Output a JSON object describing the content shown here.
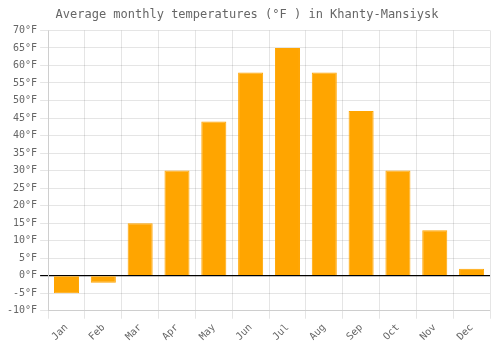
{
  "chart_data": {
    "type": "bar",
    "title": "Average monthly temperatures (°F ) in Khanty-Mansiysk",
    "categories": [
      "Jan",
      "Feb",
      "Mar",
      "Apr",
      "May",
      "Jun",
      "Jul",
      "Aug",
      "Sep",
      "Oct",
      "Nov",
      "Dec"
    ],
    "values": [
      -5,
      -2,
      15,
      30,
      44,
      58,
      65,
      58,
      47,
      30,
      13,
      2
    ],
    "color": "#FFA500",
    "ylim": [
      -10,
      70
    ],
    "yticks": [
      {
        "value": -10,
        "label": "-10°F"
      },
      {
        "value": -5,
        "label": "-5°F"
      },
      {
        "value": 0,
        "label": "0°F"
      },
      {
        "value": 5,
        "label": "5°F"
      },
      {
        "value": 10,
        "label": "10°F"
      },
      {
        "value": 15,
        "label": "15°F"
      },
      {
        "value": 20,
        "label": "20°F"
      },
      {
        "value": 25,
        "label": "25°F"
      },
      {
        "value": 30,
        "label": "30°F"
      },
      {
        "value": 35,
        "label": "35°F"
      },
      {
        "value": 40,
        "label": "40°F"
      },
      {
        "value": 45,
        "label": "45°F"
      },
      {
        "value": 50,
        "label": "50°F"
      },
      {
        "value": 55,
        "label": "55°F"
      },
      {
        "value": 60,
        "label": "60°F"
      },
      {
        "value": 65,
        "label": "65°F"
      },
      {
        "value": 70,
        "label": "70°F"
      }
    ],
    "grid": true
  }
}
